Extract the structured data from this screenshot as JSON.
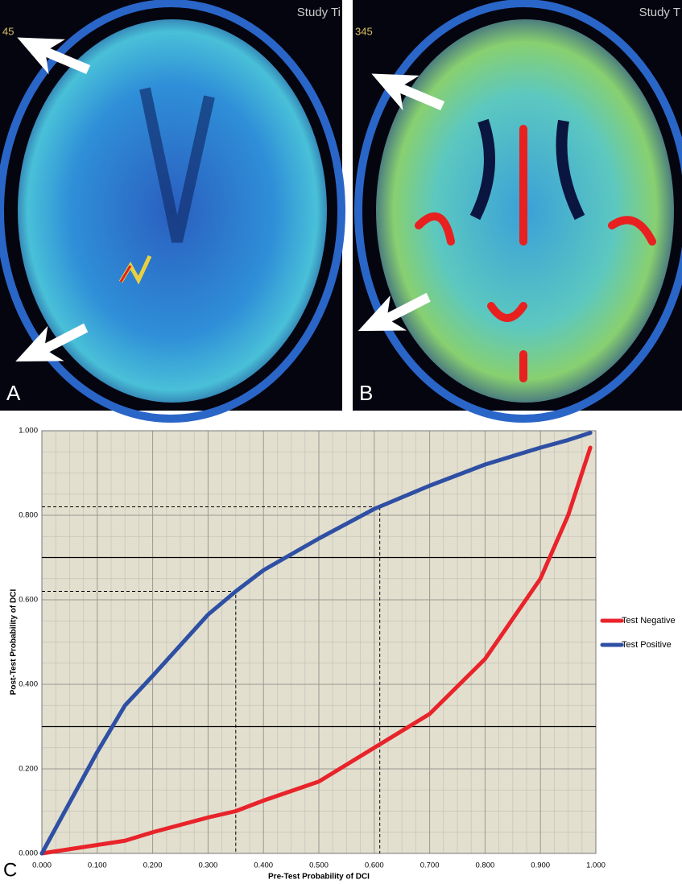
{
  "panels": [
    {
      "label": "A",
      "overlay": "Study Ti",
      "corner_text": "45"
    },
    {
      "label": "B",
      "overlay": "Study T",
      "corner_text": "345"
    }
  ],
  "chart_data": {
    "type": "line",
    "panel_label": "C",
    "x_label": "Pre-Test Probability of DCI",
    "y_label": "Post-Test Probability of DCI",
    "x": [
      0,
      0.05,
      0.1,
      0.15,
      0.2,
      0.3,
      0.35,
      0.4,
      0.5,
      0.6,
      0.7,
      0.8,
      0.9,
      0.95,
      0.99
    ],
    "series": [
      {
        "name": "Test Negative",
        "color": "#e8232a",
        "values": [
          0,
          0.01,
          0.02,
          0.03,
          0.05,
          0.085,
          0.1,
          0.125,
          0.17,
          0.25,
          0.33,
          0.46,
          0.65,
          0.8,
          0.96
        ]
      },
      {
        "name": "Test Positive",
        "color": "#2e4fa3",
        "values": [
          0,
          0.12,
          0.24,
          0.35,
          0.42,
          0.565,
          0.62,
          0.67,
          0.745,
          0.815,
          0.87,
          0.92,
          0.96,
          0.978,
          0.995
        ]
      }
    ],
    "xlim": [
      0,
      1
    ],
    "ylim": [
      0,
      1
    ],
    "xticks": [
      {
        "value": 0,
        "label": "0.000"
      },
      {
        "value": 0.1,
        "label": "0.100"
      },
      {
        "value": 0.2,
        "label": "0.200"
      },
      {
        "value": 0.3,
        "label": "0.300"
      },
      {
        "value": 0.4,
        "label": "0.400"
      },
      {
        "value": 0.5,
        "label": "0.500"
      },
      {
        "value": 0.6,
        "label": "0.600"
      },
      {
        "value": 0.7,
        "label": "0.700"
      },
      {
        "value": 0.8,
        "label": "0.800"
      },
      {
        "value": 0.9,
        "label": "0.900"
      },
      {
        "value": 1,
        "label": "1.000"
      }
    ],
    "yticks": [
      {
        "value": 0,
        "label": "0.000"
      },
      {
        "value": 0.2,
        "label": "0.200"
      },
      {
        "value": 0.4,
        "label": "0.400"
      },
      {
        "value": 0.6,
        "label": "0.600"
      },
      {
        "value": 0.8,
        "label": "0.800"
      },
      {
        "value": 1,
        "label": "1.000"
      }
    ],
    "threshold_lines": [
      0.7,
      0.3
    ],
    "guides": [
      {
        "x": 0.35,
        "y": 0.62
      },
      {
        "x": 0.61,
        "y": 0.82
      }
    ],
    "grid": true,
    "legend": "right"
  }
}
